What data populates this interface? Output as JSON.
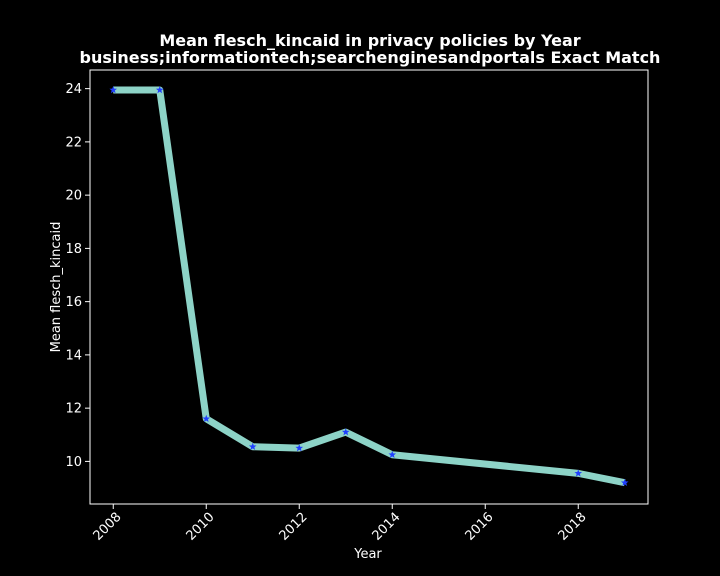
{
  "chart_data": {
    "type": "line",
    "title": "Mean flesch_kincaid in privacy policies by Year",
    "subtitle": "business;informationtech;searchenginesandportals Exact Match",
    "xlabel": "Year",
    "ylabel": "Mean flesch_kincaid",
    "x": [
      2008,
      2009,
      2010,
      2011,
      2012,
      2013,
      2014,
      2018,
      2019
    ],
    "y": [
      23.95,
      23.95,
      11.6,
      10.55,
      10.5,
      11.1,
      10.25,
      9.55,
      9.2
    ],
    "xlim": [
      2007.5,
      2019.5
    ],
    "ylim": [
      8.4,
      24.7
    ],
    "xticks": [
      2008,
      2010,
      2012,
      2014,
      2016,
      2018
    ],
    "yticks": [
      10,
      12,
      14,
      16,
      18,
      20,
      22,
      24
    ],
    "grid": false,
    "colors": {
      "background": "#000000",
      "line": "#8dd3c7",
      "marker": "#1f3fff",
      "text": "#ffffff",
      "axes": "#ffffff"
    }
  }
}
